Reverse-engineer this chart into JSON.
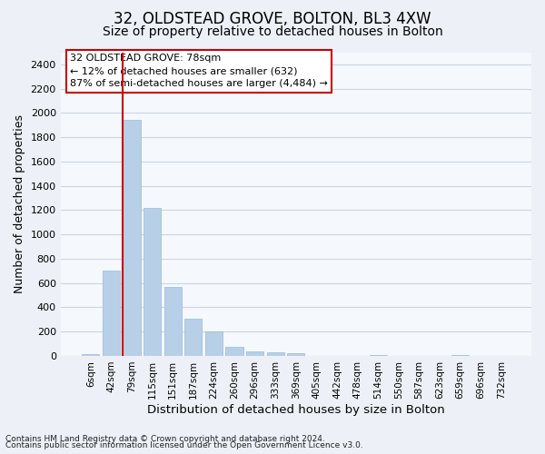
{
  "title": "32, OLDSTEAD GROVE, BOLTON, BL3 4XW",
  "subtitle": "Size of property relative to detached houses in Bolton",
  "xlabel": "Distribution of detached houses by size in Bolton",
  "ylabel": "Number of detached properties",
  "bar_labels": [
    "6sqm",
    "42sqm",
    "79sqm",
    "115sqm",
    "151sqm",
    "187sqm",
    "224sqm",
    "260sqm",
    "296sqm",
    "333sqm",
    "369sqm",
    "405sqm",
    "442sqm",
    "478sqm",
    "514sqm",
    "550sqm",
    "587sqm",
    "623sqm",
    "659sqm",
    "696sqm",
    "732sqm"
  ],
  "bar_values": [
    15,
    700,
    1940,
    1220,
    570,
    305,
    200,
    75,
    40,
    28,
    22,
    0,
    0,
    0,
    10,
    0,
    0,
    0,
    10,
    0,
    0
  ],
  "bar_color": "#b8cfe8",
  "bar_edge_color": "#9ab8d8",
  "marker_index": 2,
  "marker_color": "#cc0000",
  "ylim": [
    0,
    2500
  ],
  "yticks": [
    0,
    200,
    400,
    600,
    800,
    1000,
    1200,
    1400,
    1600,
    1800,
    2000,
    2200,
    2400
  ],
  "grid_color": "#ccd5e0",
  "annotation_title": "32 OLDSTEAD GROVE: 78sqm",
  "annotation_line1": "← 12% of detached houses are smaller (632)",
  "annotation_line2": "87% of semi-detached houses are larger (4,484) →",
  "annotation_color": "#cc0000",
  "footer_line1": "Contains HM Land Registry data © Crown copyright and database right 2024.",
  "footer_line2": "Contains public sector information licensed under the Open Government Licence v3.0.",
  "bg_color": "#edf1f7",
  "axes_bg_color": "#f5f8fc",
  "title_fontsize": 12,
  "subtitle_fontsize": 10,
  "tick_fontsize": 7.5,
  "ylabel_fontsize": 9,
  "xlabel_fontsize": 9.5,
  "footer_fontsize": 6.5
}
